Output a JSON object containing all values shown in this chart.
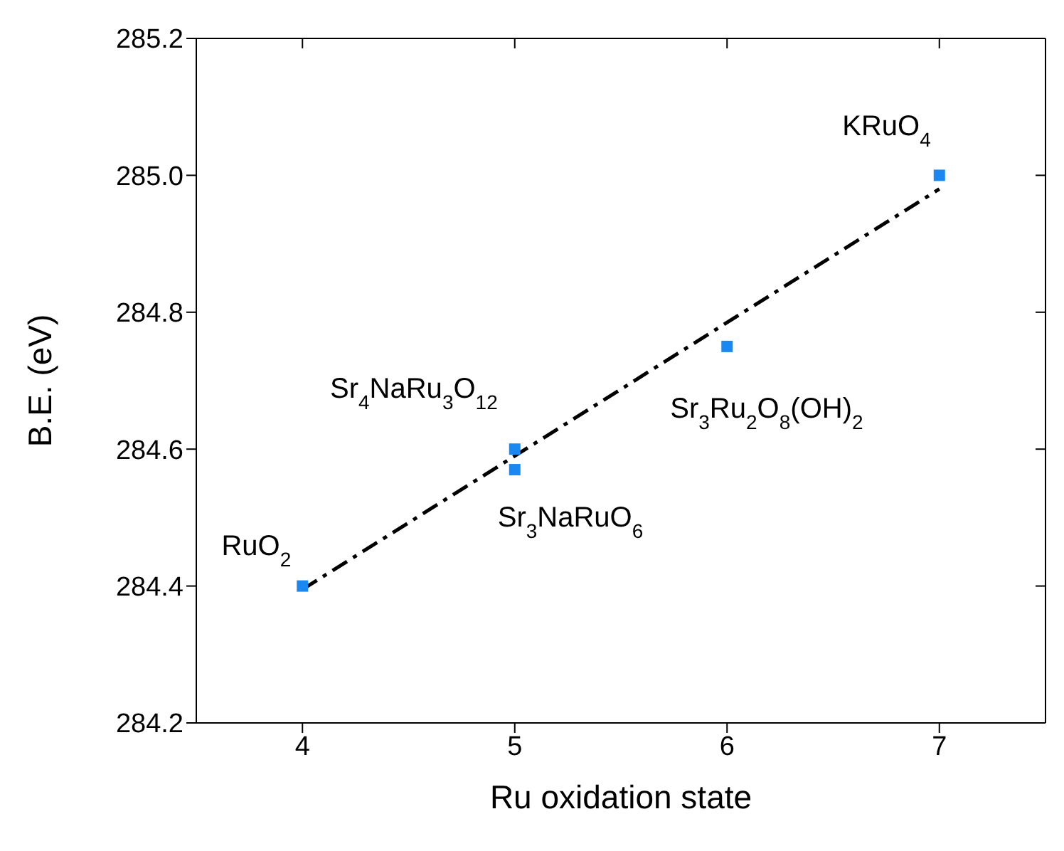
{
  "chart_data": {
    "type": "scatter",
    "xlabel": "Ru oxidation state",
    "ylabel": "B.E. (eV)",
    "xlim": [
      3.5,
      7.5
    ],
    "xticks": [
      4,
      5,
      6,
      7
    ],
    "ylim": [
      284.2,
      285.2
    ],
    "yticks": [
      284.2,
      284.4,
      284.6,
      284.8,
      {
        "value": 285.0,
        "label": "285.0"
      },
      285.2
    ],
    "series": [
      {
        "color": "#1a88f0",
        "marker": "square",
        "x": [
          4,
          5,
          5,
          6,
          7
        ],
        "values": [
          284.4,
          284.6,
          284.57,
          284.75,
          285.0
        ]
      },
      {
        "type": "line",
        "color": "#000000",
        "line_style": "dashed",
        "x": [
          4,
          7
        ],
        "values": [
          284.395,
          284.98
        ]
      }
    ],
    "annotations": [
      {
        "text": "RuO$_{2}$",
        "x": 4,
        "y": 284.4
      },
      {
        "text": "Sr$_{4}$NaRu$_{3}$O$_{12}$",
        "x": 5,
        "y": 284.6
      },
      {
        "text": "Sr$_{3}$NaRuO$_{6}$",
        "x": 5,
        "y": 284.57
      },
      {
        "text": "Sr$_{3}$Ru$_{2}$O$_{8}$(OH)$_{2}$",
        "x": 6,
        "y": 284.75
      },
      {
        "text": "KRuO$_{4}$",
        "x": 7,
        "y": 285.0
      }
    ]
  }
}
